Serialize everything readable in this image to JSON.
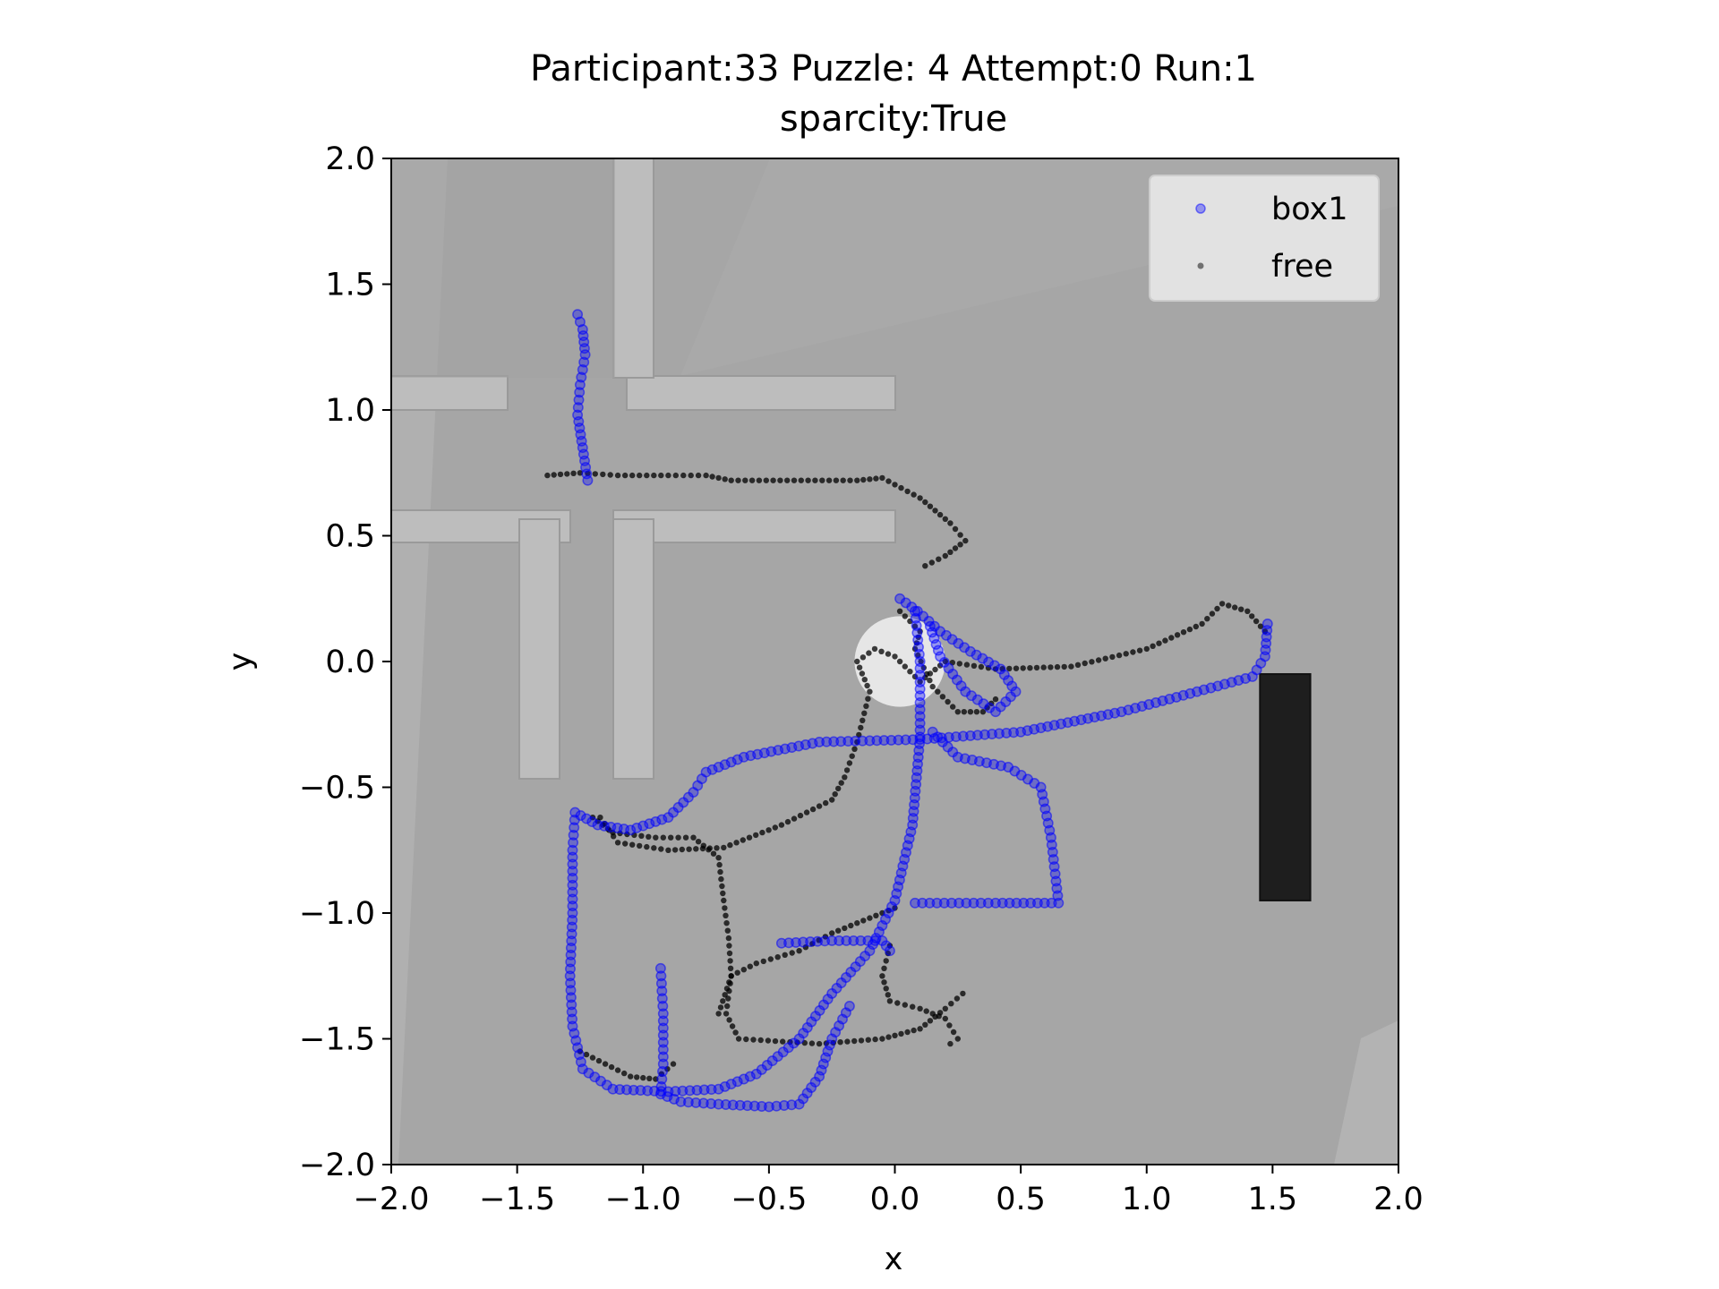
{
  "chart_data": {
    "type": "scatter",
    "title": "Participant:33 Puzzle: 4 Attempt:0 Run:1",
    "subtitle": "sparcity:True",
    "xlabel": "x",
    "ylabel": "y",
    "xlim": [
      -2.0,
      2.0
    ],
    "ylim": [
      -2.0,
      2.0
    ],
    "x_ticks": [
      "−2.0",
      "−1.5",
      "−1.0",
      "−0.5",
      "0.0",
      "0.5",
      "1.0",
      "1.5",
      "2.0"
    ],
    "y_ticks": [
      "2.0",
      "1.5",
      "1.0",
      "0.5",
      "0.0",
      "−0.5",
      "−1.0",
      "−1.5",
      "−2.0"
    ],
    "grid": false,
    "legend_position": "top-right",
    "colors": {
      "box1": "#0000ff",
      "free": "#000000",
      "background": "#a6a6a6"
    },
    "series": [
      {
        "name": "box1",
        "paths": [
          [
            [
              -1.26,
              1.38
            ],
            [
              -1.24,
              1.32
            ],
            [
              -1.23,
              1.22
            ],
            [
              -1.25,
              1.1
            ],
            [
              -1.26,
              0.98
            ],
            [
              -1.24,
              0.85
            ],
            [
              -1.22,
              0.72
            ]
          ],
          [
            [
              0.02,
              0.25
            ],
            [
              0.09,
              0.2
            ],
            [
              0.18,
              0.12
            ],
            [
              0.3,
              0.04
            ],
            [
              0.42,
              -0.03
            ],
            [
              0.48,
              -0.12
            ],
            [
              0.4,
              -0.2
            ],
            [
              0.28,
              -0.12
            ],
            [
              0.18,
              0.02
            ],
            [
              0.14,
              0.14
            ]
          ],
          [
            [
              1.48,
              0.15
            ],
            [
              1.47,
              0.02
            ],
            [
              1.42,
              -0.06
            ],
            [
              1.2,
              -0.12
            ],
            [
              0.9,
              -0.2
            ],
            [
              0.5,
              -0.28
            ],
            [
              0.1,
              -0.31
            ],
            [
              -0.3,
              -0.32
            ],
            [
              -0.6,
              -0.38
            ],
            [
              -0.75,
              -0.44
            ],
            [
              -0.8,
              -0.52
            ],
            [
              -0.9,
              -0.62
            ],
            [
              -1.05,
              -0.67
            ],
            [
              -1.18,
              -0.65
            ],
            [
              -1.27,
              -0.6
            ],
            [
              -1.28,
              -0.75
            ],
            [
              -1.28,
              -1.0
            ],
            [
              -1.29,
              -1.25
            ],
            [
              -1.28,
              -1.45
            ],
            [
              -1.24,
              -1.62
            ],
            [
              -1.12,
              -1.7
            ],
            [
              -0.9,
              -1.71
            ],
            [
              -0.7,
              -1.7
            ],
            [
              -0.55,
              -1.64
            ],
            [
              -0.38,
              -1.5
            ],
            [
              -0.25,
              -1.32
            ],
            [
              -0.1,
              -1.15
            ],
            [
              0.0,
              -0.95
            ],
            [
              0.07,
              -0.65
            ],
            [
              0.1,
              -0.3
            ],
            [
              0.1,
              0.0
            ],
            [
              0.08,
              0.2
            ]
          ],
          [
            [
              0.15,
              -0.28
            ],
            [
              0.25,
              -0.38
            ],
            [
              0.45,
              -0.42
            ],
            [
              0.58,
              -0.5
            ],
            [
              0.62,
              -0.7
            ],
            [
              0.65,
              -0.96
            ],
            [
              0.4,
              -0.96
            ],
            [
              0.08,
              -0.96
            ]
          ],
          [
            [
              -0.45,
              -1.12
            ],
            [
              -0.25,
              -1.11
            ],
            [
              -0.05,
              -1.11
            ],
            [
              -0.02,
              -1.15
            ]
          ],
          [
            [
              -0.93,
              -1.22
            ],
            [
              -0.92,
              -1.4
            ],
            [
              -0.92,
              -1.6
            ],
            [
              -0.93,
              -1.72
            ],
            [
              -0.85,
              -1.75
            ],
            [
              -0.7,
              -1.76
            ],
            [
              -0.5,
              -1.77
            ],
            [
              -0.38,
              -1.76
            ],
            [
              -0.3,
              -1.65
            ],
            [
              -0.25,
              -1.5
            ],
            [
              -0.18,
              -1.37
            ]
          ]
        ]
      },
      {
        "name": "free",
        "paths": [
          [
            [
              -1.38,
              0.74
            ],
            [
              -1.25,
              0.75
            ],
            [
              -1.1,
              0.74
            ],
            [
              -0.9,
              0.74
            ],
            [
              -0.75,
              0.74
            ],
            [
              -0.65,
              0.72
            ],
            [
              -0.4,
              0.72
            ],
            [
              -0.15,
              0.72
            ],
            [
              -0.05,
              0.73
            ],
            [
              0.1,
              0.65
            ],
            [
              0.22,
              0.55
            ],
            [
              0.28,
              0.48
            ],
            [
              0.2,
              0.42
            ],
            [
              0.12,
              0.38
            ]
          ],
          [
            [
              -1.17,
              -0.62
            ],
            [
              -1.1,
              -0.72
            ],
            [
              -0.9,
              -0.75
            ],
            [
              -0.68,
              -0.74
            ],
            [
              -0.45,
              -0.65
            ],
            [
              -0.25,
              -0.55
            ],
            [
              -0.2,
              -0.46
            ],
            [
              -0.15,
              -0.32
            ],
            [
              -0.1,
              -0.12
            ],
            [
              -0.15,
              0.0
            ],
            [
              -0.08,
              0.05
            ],
            [
              0.0,
              0.02
            ],
            [
              0.1,
              -0.08
            ],
            [
              0.2,
              0.0
            ],
            [
              0.4,
              -0.03
            ],
            [
              0.7,
              -0.02
            ],
            [
              1.0,
              0.05
            ],
            [
              1.22,
              0.15
            ],
            [
              1.3,
              0.23
            ],
            [
              1.4,
              0.2
            ],
            [
              1.47,
              0.12
            ]
          ],
          [
            [
              -1.2,
              -0.62
            ],
            [
              -1.12,
              -0.68
            ],
            [
              -0.95,
              -0.7
            ],
            [
              -0.8,
              -0.7
            ],
            [
              -0.7,
              -0.78
            ],
            [
              -0.68,
              -0.95
            ],
            [
              -0.66,
              -1.1
            ],
            [
              -0.65,
              -1.25
            ],
            [
              -0.67,
              -1.4
            ],
            [
              -0.62,
              -1.5
            ],
            [
              -0.3,
              -1.52
            ],
            [
              -0.05,
              -1.5
            ],
            [
              0.1,
              -1.46
            ],
            [
              0.2,
              -1.38
            ],
            [
              0.27,
              -1.32
            ]
          ],
          [
            [
              -0.7,
              -1.4
            ],
            [
              -0.65,
              -1.25
            ],
            [
              -0.55,
              -1.2
            ],
            [
              -0.38,
              -1.15
            ],
            [
              -0.25,
              -1.08
            ],
            [
              -0.1,
              -1.02
            ],
            [
              0.0,
              -0.98
            ]
          ],
          [
            [
              -1.25,
              -1.55
            ],
            [
              -1.15,
              -1.6
            ],
            [
              -1.05,
              -1.65
            ],
            [
              -0.95,
              -1.66
            ],
            [
              -0.88,
              -1.6
            ]
          ],
          [
            [
              0.02,
              0.2
            ],
            [
              0.1,
              0.12
            ],
            [
              0.08,
              0.05
            ],
            [
              0.15,
              -0.1
            ],
            [
              0.25,
              -0.2
            ],
            [
              0.35,
              -0.2
            ],
            [
              0.4,
              -0.15
            ]
          ],
          [
            [
              -0.02,
              -1.13
            ],
            [
              -0.05,
              -1.25
            ],
            [
              -0.02,
              -1.35
            ],
            [
              0.1,
              -1.38
            ],
            [
              0.2,
              -1.42
            ],
            [
              0.25,
              -1.5
            ],
            [
              0.22,
              -1.52
            ]
          ]
        ]
      }
    ],
    "annotations": [
      {
        "type": "blocker",
        "name": "dark-block",
        "x": [
          1.45,
          1.65
        ],
        "y": [
          -0.95,
          -0.05
        ]
      },
      {
        "type": "target",
        "name": "white-circle",
        "cx": 0.02,
        "cy": 0.0,
        "r": 0.18
      }
    ]
  }
}
